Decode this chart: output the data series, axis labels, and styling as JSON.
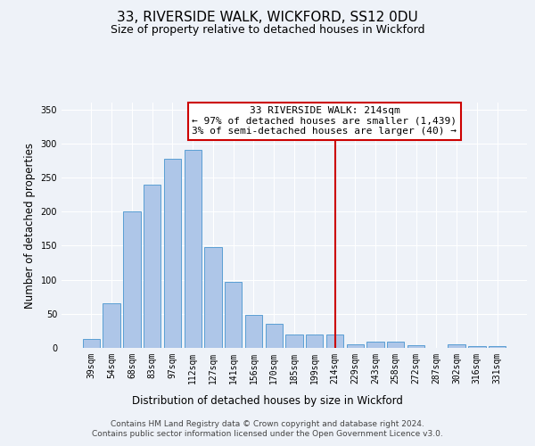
{
  "title": "33, RIVERSIDE WALK, WICKFORD, SS12 0DU",
  "subtitle": "Size of property relative to detached houses in Wickford",
  "xlabel": "Distribution of detached houses by size in Wickford",
  "ylabel": "Number of detached properties",
  "categories": [
    "39sqm",
    "54sqm",
    "68sqm",
    "83sqm",
    "97sqm",
    "112sqm",
    "127sqm",
    "141sqm",
    "156sqm",
    "170sqm",
    "185sqm",
    "199sqm",
    "214sqm",
    "229sqm",
    "243sqm",
    "258sqm",
    "272sqm",
    "287sqm",
    "302sqm",
    "316sqm",
    "331sqm"
  ],
  "values": [
    13,
    65,
    200,
    240,
    278,
    290,
    148,
    97,
    49,
    36,
    19,
    20,
    19,
    5,
    9,
    9,
    4,
    0,
    5,
    3,
    3
  ],
  "bar_color": "#aec6e8",
  "bar_edge_color": "#5a9fd4",
  "highlight_index": 12,
  "highlight_line_color": "#cc0000",
  "annotation_text": "33 RIVERSIDE WALK: 214sqm\n← 97% of detached houses are smaller (1,439)\n3% of semi-detached houses are larger (40) →",
  "annotation_box_edge_color": "#cc0000",
  "ylim": [
    0,
    360
  ],
  "yticks": [
    0,
    50,
    100,
    150,
    200,
    250,
    300,
    350
  ],
  "background_color": "#eef2f8",
  "plot_background_color": "#eef2f8",
  "footer_line1": "Contains HM Land Registry data © Crown copyright and database right 2024.",
  "footer_line2": "Contains public sector information licensed under the Open Government Licence v3.0.",
  "title_fontsize": 11,
  "subtitle_fontsize": 9,
  "axis_label_fontsize": 8.5,
  "tick_fontsize": 7,
  "annotation_fontsize": 8,
  "footer_fontsize": 6.5
}
